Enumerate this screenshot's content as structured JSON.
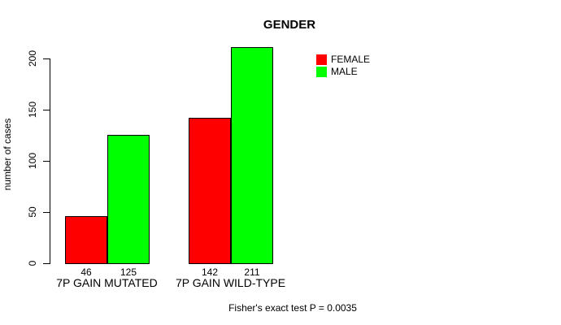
{
  "chart_data": {
    "type": "bar",
    "title": "GENDER",
    "ylabel": "number of cases",
    "xlabel": "",
    "categories": [
      "7P GAIN MUTATED",
      "7P GAIN WILD-TYPE"
    ],
    "series": [
      {
        "name": "FEMALE",
        "color": "#ff0000",
        "values": [
          46,
          142
        ]
      },
      {
        "name": "MALE",
        "color": "#00ff00",
        "values": [
          125,
          211
        ]
      }
    ],
    "bar_value_labels": [
      [
        46,
        125
      ],
      [
        142,
        211
      ]
    ],
    "yticks": [
      0,
      50,
      100,
      150,
      200
    ],
    "ylim": [
      0,
      211
    ],
    "grid": false,
    "legend_position": "top-right",
    "annotation": "Fisher's exact test P = 0.0035"
  }
}
